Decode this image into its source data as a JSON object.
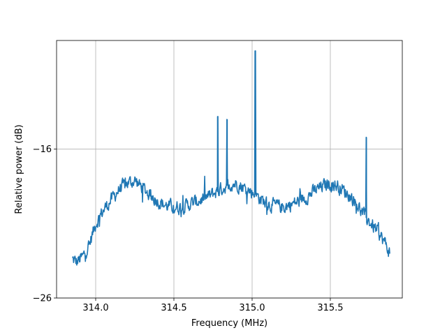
{
  "chart_data": {
    "type": "line",
    "title": "",
    "xlabel": "Frequency (MHz)",
    "ylabel": "Relative power (dB)",
    "xlim": [
      313.75,
      315.96
    ],
    "ylim": [
      -26,
      -8.7
    ],
    "grid": true,
    "x_ticks": [
      {
        "value": 314.0,
        "label": "314.0"
      },
      {
        "value": 314.5,
        "label": "314.5"
      },
      {
        "value": 315.0,
        "label": "315.0"
      },
      {
        "value": 315.5,
        "label": "315.5"
      }
    ],
    "y_ticks": [
      {
        "value": -16,
        "label": "−16"
      },
      {
        "value": -26,
        "label": "−26"
      }
    ],
    "series": [
      {
        "color": "#1f77b4",
        "x_start": 313.85,
        "x_end": 315.88,
        "envelope": {
          "x": [
            313.85,
            313.88,
            313.92,
            313.96,
            314.0,
            314.05,
            314.1,
            314.15,
            314.2,
            314.25,
            314.3,
            314.35,
            314.4,
            314.45,
            314.5,
            314.55,
            314.6,
            314.65,
            314.7,
            314.75,
            314.8,
            314.85,
            314.9,
            314.95,
            315.0,
            315.05,
            315.1,
            315.15,
            315.2,
            315.25,
            315.3,
            315.35,
            315.4,
            315.45,
            315.5,
            315.55,
            315.6,
            315.65,
            315.7,
            315.75,
            315.8,
            315.85,
            315.88
          ],
          "y": [
            -23.4,
            -23.6,
            -23.2,
            -22.4,
            -21.0,
            -20.1,
            -19.4,
            -18.7,
            -18.3,
            -18.1,
            -18.6,
            -19.1,
            -19.5,
            -19.8,
            -19.9,
            -19.9,
            -19.7,
            -19.5,
            -19.3,
            -19.0,
            -18.7,
            -18.4,
            -18.3,
            -18.6,
            -18.9,
            -19.3,
            -19.7,
            -19.8,
            -19.9,
            -19.7,
            -19.5,
            -19.2,
            -18.8,
            -18.5,
            -18.3,
            -18.5,
            -18.9,
            -19.4,
            -20.2,
            -20.9,
            -21.5,
            -22.3,
            -23.0
          ]
        },
        "spikes": [
          {
            "x": 314.78,
            "peak": -13.8
          },
          {
            "x": 314.84,
            "peak": -14.0
          },
          {
            "x": 315.02,
            "peak": -9.4
          },
          {
            "x": 315.73,
            "peak": -15.2
          }
        ]
      }
    ]
  }
}
